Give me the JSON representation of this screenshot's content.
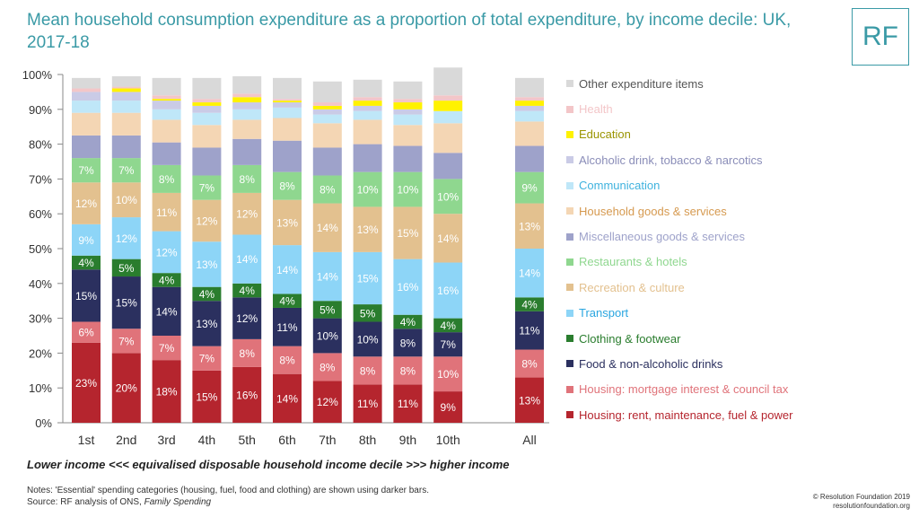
{
  "title": "Mean household consumption expenditure as a proportion of total expenditure, by income decile: UK, 2017-18",
  "logo": "RF",
  "x_caption": "Lower income <<< equivalised disposable household income decile >>> higher income",
  "notes": {
    "line1": "Notes: 'Essential' spending categories (housing, fuel, food and clothing) are shown using darker bars.",
    "source_prefix": "Source: RF analysis of ONS, ",
    "source_title": "Family Spending"
  },
  "credit": {
    "line1": "© Resolution Foundation 2019",
    "line2": "resolutionfoundation.org"
  },
  "chart_data": {
    "type": "bar",
    "stacked": true,
    "categories": [
      "1st",
      "2nd",
      "3rd",
      "4th",
      "5th",
      "6th",
      "7th",
      "8th",
      "9th",
      "10th",
      "All"
    ],
    "ylim": [
      0,
      100
    ],
    "ytick_labels": [
      "0%",
      "10%",
      "20%",
      "30%",
      "40%",
      "50%",
      "60%",
      "70%",
      "80%",
      "90%",
      "100%"
    ],
    "legend_position": "right",
    "series": [
      {
        "name": "Housing: rent, maintenance, fuel & power",
        "color": "#b5252e",
        "label_color": "#ffffff",
        "values": [
          23,
          20,
          18,
          15,
          16,
          14,
          12,
          11,
          11,
          9,
          13
        ]
      },
      {
        "name": "Housing: mortgage interest & council tax",
        "color": "#e0737a",
        "label_color": "#ffffff",
        "values": [
          6,
          7,
          7,
          7,
          8,
          8,
          8,
          8,
          8,
          10,
          8
        ]
      },
      {
        "name": "Food & non-alcoholic drinks",
        "color": "#2b305f",
        "label_color": "#ffffff",
        "values": [
          15,
          15,
          14,
          13,
          12,
          11,
          10,
          10,
          8,
          7,
          11
        ]
      },
      {
        "name": "Clothing & footwear",
        "color": "#2a7d2e",
        "label_color": "#ffffff",
        "values": [
          4,
          5,
          4,
          4,
          4,
          4,
          5,
          5,
          4,
          4,
          4
        ]
      },
      {
        "name": "Transport",
        "color": "#8dd5f7",
        "label_color": "#ffffff",
        "values": [
          9,
          12,
          12,
          13,
          14,
          14,
          14,
          15,
          16,
          16,
          14
        ]
      },
      {
        "name": "Recreation & culture",
        "color": "#e3c18f",
        "label_color": "#ffffff",
        "values": [
          12,
          10,
          11,
          12,
          12,
          13,
          14,
          13,
          15,
          14,
          13
        ]
      },
      {
        "name": "Restaurants & hotels",
        "color": "#8fd78f",
        "label_color": "#ffffff",
        "values": [
          7,
          7,
          8,
          7,
          8,
          8,
          8,
          10,
          10,
          10,
          9
        ]
      },
      {
        "name": "Miscellaneous goods & services",
        "color": "#9ea2ca",
        "label_color": null,
        "values": [
          6.5,
          6.5,
          6.5,
          8,
          7.5,
          9,
          8,
          8,
          7.5,
          7.5,
          7.5
        ]
      },
      {
        "name": "Household goods & services",
        "color": "#f4d6b4",
        "label_color": null,
        "values": [
          6.5,
          6.5,
          6.5,
          6.5,
          5.5,
          6.5,
          7,
          7,
          6,
          8.5,
          7
        ]
      },
      {
        "name": "Communication",
        "color": "#bfe7f8",
        "label_color": null,
        "values": [
          3.5,
          3.5,
          3,
          3.5,
          3,
          3,
          2.5,
          2.5,
          3,
          3.5,
          3
        ]
      },
      {
        "name": "Alcoholic drink, tobacco & narcotics",
        "color": "#cacbe6",
        "label_color": null,
        "values": [
          2.5,
          2.5,
          2.5,
          2,
          2,
          1.5,
          1.5,
          1.5,
          1.5,
          0,
          1.5
        ]
      },
      {
        "name": "Education",
        "color": "#fff200",
        "label_color": null,
        "values": [
          0,
          1,
          0.5,
          1,
          1.5,
          0.5,
          1,
          1.5,
          2,
          3,
          1.5
        ]
      },
      {
        "name": "Health",
        "color": "#f3c6c8",
        "label_color": null,
        "values": [
          1,
          0.5,
          1,
          1,
          1,
          0.5,
          1,
          1,
          1,
          1.5,
          1
        ]
      },
      {
        "name": "Other expenditure items",
        "color": "#d9d9d9",
        "label_color": null,
        "values": [
          3,
          3,
          5,
          6,
          5,
          6,
          6,
          5,
          5,
          8,
          5.5
        ]
      }
    ]
  }
}
